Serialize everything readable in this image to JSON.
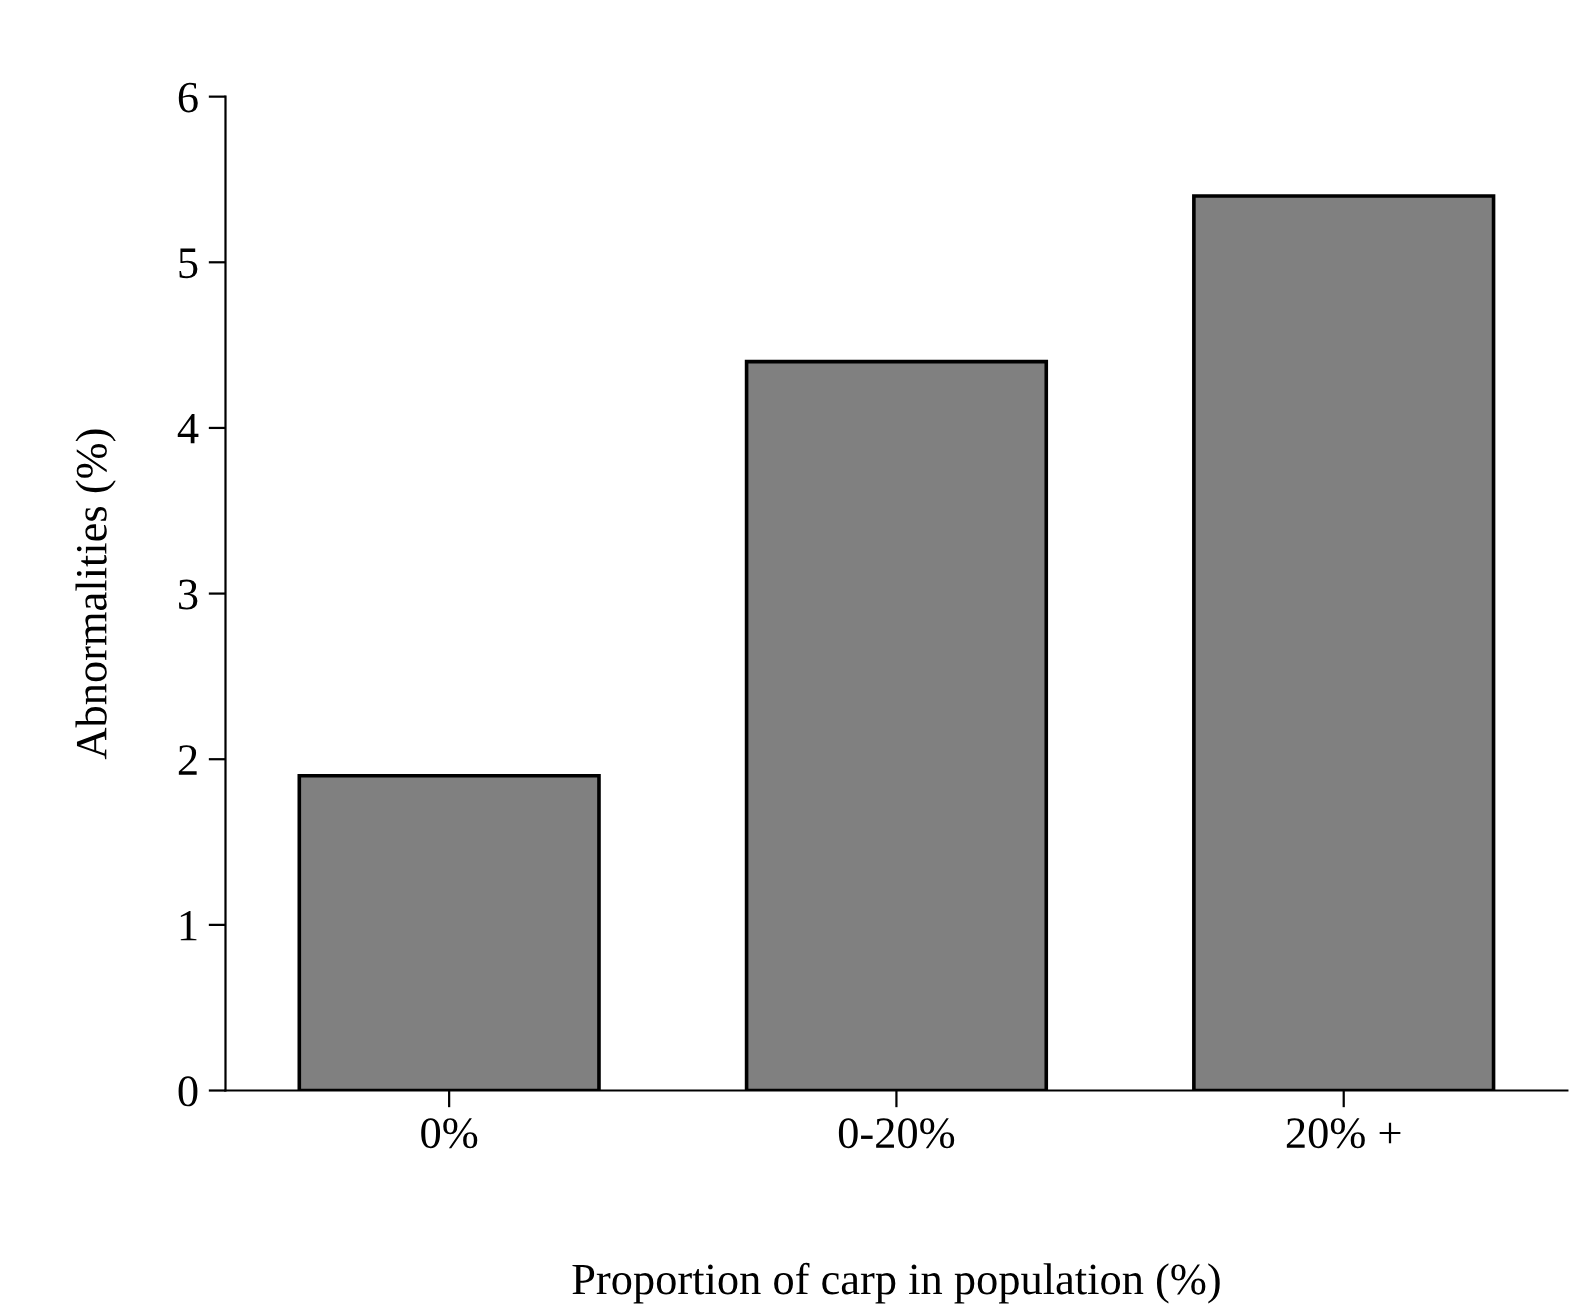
{
  "chart_data": {
    "type": "bar",
    "categories": [
      "0%",
      "0-20%",
      "20% +"
    ],
    "values": [
      1.9,
      4.4,
      5.4
    ],
    "color": "#808080",
    "xlabel": "Proportion of carp in population (%)",
    "ylabel": "Abnormalities (%)",
    "ylim": [
      0,
      6
    ],
    "yticks": [
      0,
      1,
      2,
      3,
      4,
      5,
      6
    ],
    "grid": false,
    "legend": false
  }
}
